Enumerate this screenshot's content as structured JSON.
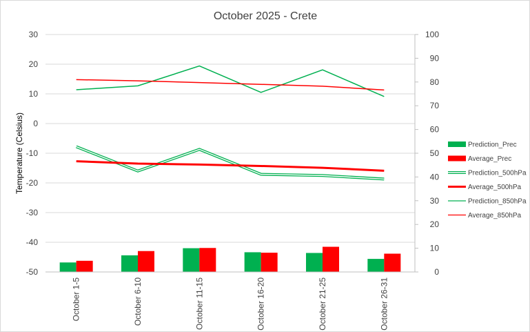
{
  "chart_data": {
    "type": "bar+line",
    "title": "October 2025 - Crete",
    "ylabel": "Temperature (Celsius)",
    "xlabel": "",
    "categories": [
      "October 1-5",
      "October 6-10",
      "October 11-15",
      "October 16-20",
      "October 21-25",
      "October 26-31"
    ],
    "y_left": {
      "lim": [
        -50,
        30
      ],
      "ticks": [
        30,
        20,
        10,
        0,
        -10,
        -20,
        -30,
        -40,
        -50
      ]
    },
    "y_right": {
      "lim": [
        0,
        100
      ],
      "ticks": [
        100,
        90,
        80,
        70,
        60,
        50,
        40,
        30,
        20,
        10,
        0
      ]
    },
    "grid": "horizontal, left axis",
    "legend_position": "right",
    "bars": [
      {
        "name": "Prediction_Prec",
        "color": "#00b050",
        "axis": "right",
        "values": [
          4,
          7,
          10,
          8.3,
          8,
          5.5
        ]
      },
      {
        "name": "Average_Prec",
        "color": "#ff0000",
        "axis": "right",
        "values": [
          4.7,
          8.8,
          10.1,
          8.1,
          10.6,
          7.7
        ]
      }
    ],
    "lines": [
      {
        "name": "Prediction_500hPa",
        "color": "#00b050",
        "style": "double",
        "axis": "left",
        "values": [
          -7.8,
          -16,
          -8.7,
          -17.1,
          -17.5,
          -18.7
        ]
      },
      {
        "name": "Average_500hPa",
        "color": "#ff0000",
        "style": "thick",
        "axis": "left",
        "values": [
          -12.7,
          -13.5,
          -13.8,
          -14.3,
          -14.9,
          -15.9
        ]
      },
      {
        "name": "Prediction_850hPa",
        "color": "#00b050",
        "style": "thin",
        "axis": "left",
        "values": [
          11.4,
          12.7,
          19.4,
          10.5,
          18.1,
          9.1
        ]
      },
      {
        "name": "Average_850hPa",
        "color": "#ff0000",
        "style": "thin",
        "axis": "left",
        "values": [
          14.8,
          14.4,
          13.8,
          13.2,
          12.6,
          11.3
        ]
      }
    ]
  }
}
